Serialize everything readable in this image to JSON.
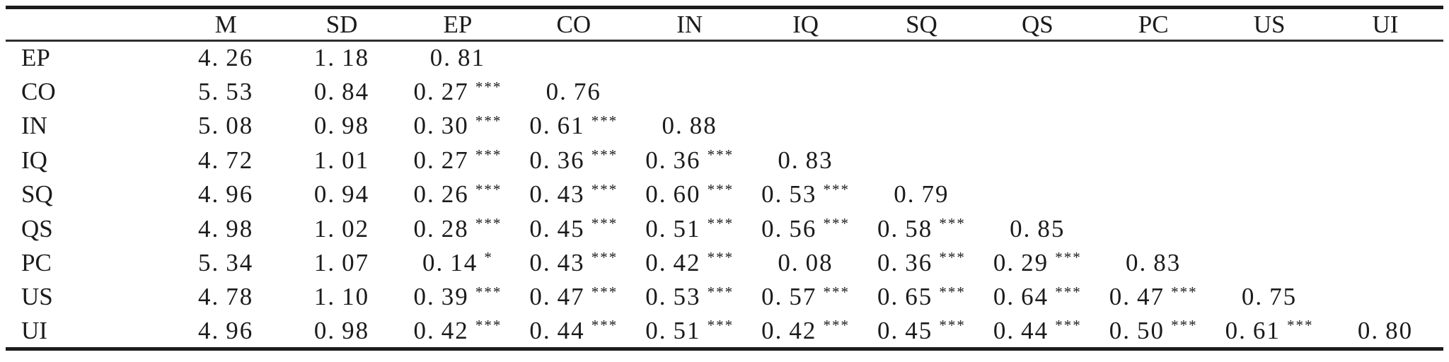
{
  "table": {
    "name": "descriptive-statistics-and-correlation-matrix",
    "columns": [
      "",
      "M",
      "SD",
      "EP",
      "CO",
      "IN",
      "IQ",
      "SQ",
      "QS",
      "PC",
      "US",
      "UI"
    ],
    "rows": [
      {
        "label": "EP",
        "m": "4.26",
        "sd": "1.18",
        "corr": [
          {
            "v": "0.81",
            "sig": ""
          },
          null,
          null,
          null,
          null,
          null,
          null,
          null,
          null
        ]
      },
      {
        "label": "CO",
        "m": "5.53",
        "sd": "0.84",
        "corr": [
          {
            "v": "0.27",
            "sig": "***"
          },
          {
            "v": "0.76",
            "sig": ""
          },
          null,
          null,
          null,
          null,
          null,
          null,
          null
        ]
      },
      {
        "label": "IN",
        "m": "5.08",
        "sd": "0.98",
        "corr": [
          {
            "v": "0.30",
            "sig": "***"
          },
          {
            "v": "0.61",
            "sig": "***"
          },
          {
            "v": "0.88",
            "sig": ""
          },
          null,
          null,
          null,
          null,
          null,
          null
        ]
      },
      {
        "label": "IQ",
        "m": "4.72",
        "sd": "1.01",
        "corr": [
          {
            "v": "0.27",
            "sig": "***"
          },
          {
            "v": "0.36",
            "sig": "***"
          },
          {
            "v": "0.36",
            "sig": "***"
          },
          {
            "v": "0.83",
            "sig": ""
          },
          null,
          null,
          null,
          null,
          null
        ]
      },
      {
        "label": "SQ",
        "m": "4.96",
        "sd": "0.94",
        "corr": [
          {
            "v": "0.26",
            "sig": "***"
          },
          {
            "v": "0.43",
            "sig": "***"
          },
          {
            "v": "0.60",
            "sig": "***"
          },
          {
            "v": "0.53",
            "sig": "***"
          },
          {
            "v": "0.79",
            "sig": ""
          },
          null,
          null,
          null,
          null
        ]
      },
      {
        "label": "QS",
        "m": "4.98",
        "sd": "1.02",
        "corr": [
          {
            "v": "0.28",
            "sig": "***"
          },
          {
            "v": "0.45",
            "sig": "***"
          },
          {
            "v": "0.51",
            "sig": "***"
          },
          {
            "v": "0.56",
            "sig": "***"
          },
          {
            "v": "0.58",
            "sig": "***"
          },
          {
            "v": "0.85",
            "sig": ""
          },
          null,
          null,
          null
        ]
      },
      {
        "label": "PC",
        "m": "5.34",
        "sd": "1.07",
        "corr": [
          {
            "v": "0.14",
            "sig": "*"
          },
          {
            "v": "0.43",
            "sig": "***"
          },
          {
            "v": "0.42",
            "sig": "***"
          },
          {
            "v": "0.08",
            "sig": ""
          },
          {
            "v": "0.36",
            "sig": "***"
          },
          {
            "v": "0.29",
            "sig": "***"
          },
          {
            "v": "0.83",
            "sig": ""
          },
          null,
          null
        ]
      },
      {
        "label": "US",
        "m": "4.78",
        "sd": "1.10",
        "corr": [
          {
            "v": "0.39",
            "sig": "***"
          },
          {
            "v": "0.47",
            "sig": "***"
          },
          {
            "v": "0.53",
            "sig": "***"
          },
          {
            "v": "0.57",
            "sig": "***"
          },
          {
            "v": "0.65",
            "sig": "***"
          },
          {
            "v": "0.64",
            "sig": "***"
          },
          {
            "v": "0.47",
            "sig": "***"
          },
          {
            "v": "0.75",
            "sig": ""
          },
          null
        ]
      },
      {
        "label": "UI",
        "m": "4.96",
        "sd": "0.98",
        "corr": [
          {
            "v": "0.42",
            "sig": "***"
          },
          {
            "v": "0.44",
            "sig": "***"
          },
          {
            "v": "0.51",
            "sig": "***"
          },
          {
            "v": "0.42",
            "sig": "***"
          },
          {
            "v": "0.45",
            "sig": "***"
          },
          {
            "v": "0.44",
            "sig": "***"
          },
          {
            "v": "0.50",
            "sig": "***"
          },
          {
            "v": "0.61",
            "sig": "***"
          },
          {
            "v": "0.80",
            "sig": ""
          }
        ]
      }
    ]
  },
  "chart_data": {
    "type": "table",
    "title": "",
    "columns": [
      "",
      "M",
      "SD",
      "EP",
      "CO",
      "IN",
      "IQ",
      "SQ",
      "QS",
      "PC",
      "US",
      "UI"
    ],
    "row_labels": [
      "EP",
      "CO",
      "IN",
      "IQ",
      "SQ",
      "QS",
      "PC",
      "US",
      "UI"
    ],
    "M": [
      4.26,
      5.53,
      5.08,
      4.72,
      4.96,
      4.98,
      5.34,
      4.78,
      4.96
    ],
    "SD": [
      1.18,
      0.84,
      0.98,
      1.01,
      0.94,
      1.02,
      1.07,
      1.1,
      0.98
    ],
    "correlation_lower_triangle": [
      [
        0.81
      ],
      [
        0.27,
        0.76
      ],
      [
        0.3,
        0.61,
        0.88
      ],
      [
        0.27,
        0.36,
        0.36,
        0.83
      ],
      [
        0.26,
        0.43,
        0.6,
        0.53,
        0.79
      ],
      [
        0.28,
        0.45,
        0.51,
        0.56,
        0.58,
        0.85
      ],
      [
        0.14,
        0.43,
        0.42,
        0.08,
        0.36,
        0.29,
        0.83
      ],
      [
        0.39,
        0.47,
        0.53,
        0.57,
        0.65,
        0.64,
        0.47,
        0.75
      ],
      [
        0.42,
        0.44,
        0.51,
        0.42,
        0.45,
        0.44,
        0.5,
        0.61,
        0.8
      ]
    ],
    "significance_lower_triangle": [
      [
        ""
      ],
      [
        "***",
        ""
      ],
      [
        "***",
        "***",
        ""
      ],
      [
        "***",
        "***",
        "***",
        ""
      ],
      [
        "***",
        "***",
        "***",
        "***",
        ""
      ],
      [
        "***",
        "***",
        "***",
        "***",
        "***",
        ""
      ],
      [
        "*",
        "***",
        "***",
        "",
        "***",
        "***",
        ""
      ],
      [
        "***",
        "***",
        "***",
        "***",
        "***",
        "***",
        "***",
        ""
      ],
      [
        "***",
        "***",
        "***",
        "***",
        "***",
        "***",
        "***",
        "***",
        ""
      ]
    ],
    "layout": "lower-triangle correlation matrix; thick top and bottom rules, thin rule under header; no vertical rules"
  },
  "colors": {
    "background": "#ffffff",
    "text": "#1b1b1b",
    "rule_thick": "#1c1c1c",
    "rule_thin": "#2e2e2e"
  }
}
